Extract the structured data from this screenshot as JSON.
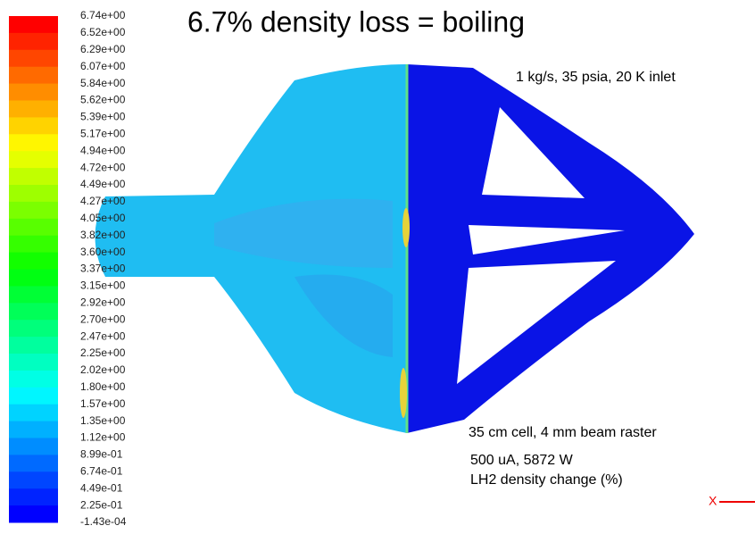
{
  "title": "6.7% density loss = boiling",
  "annotations": [
    "1 kg/s, 35 psia, 20 K inlet",
    "35 cm cell, 4 mm beam raster",
    "500 uA, 5872 W",
    "LH2 density change (%)"
  ],
  "colorbar": {
    "labels": [
      "6.74e+00",
      "6.52e+00",
      "6.29e+00",
      "6.07e+00",
      "5.84e+00",
      "5.62e+00",
      "5.39e+00",
      "5.17e+00",
      "4.94e+00",
      "4.72e+00",
      "4.49e+00",
      "4.27e+00",
      "4.05e+00",
      "3.82e+00",
      "3.60e+00",
      "3.37e+00",
      "3.15e+00",
      "2.92e+00",
      "2.70e+00",
      "2.47e+00",
      "2.25e+00",
      "2.02e+00",
      "1.80e+00",
      "1.57e+00",
      "1.35e+00",
      "1.12e+00",
      "8.99e-01",
      "6.74e-01",
      "4.49e-01",
      "2.25e-01",
      "-1.43e-04"
    ]
  },
  "axis_indicator": "X"
}
